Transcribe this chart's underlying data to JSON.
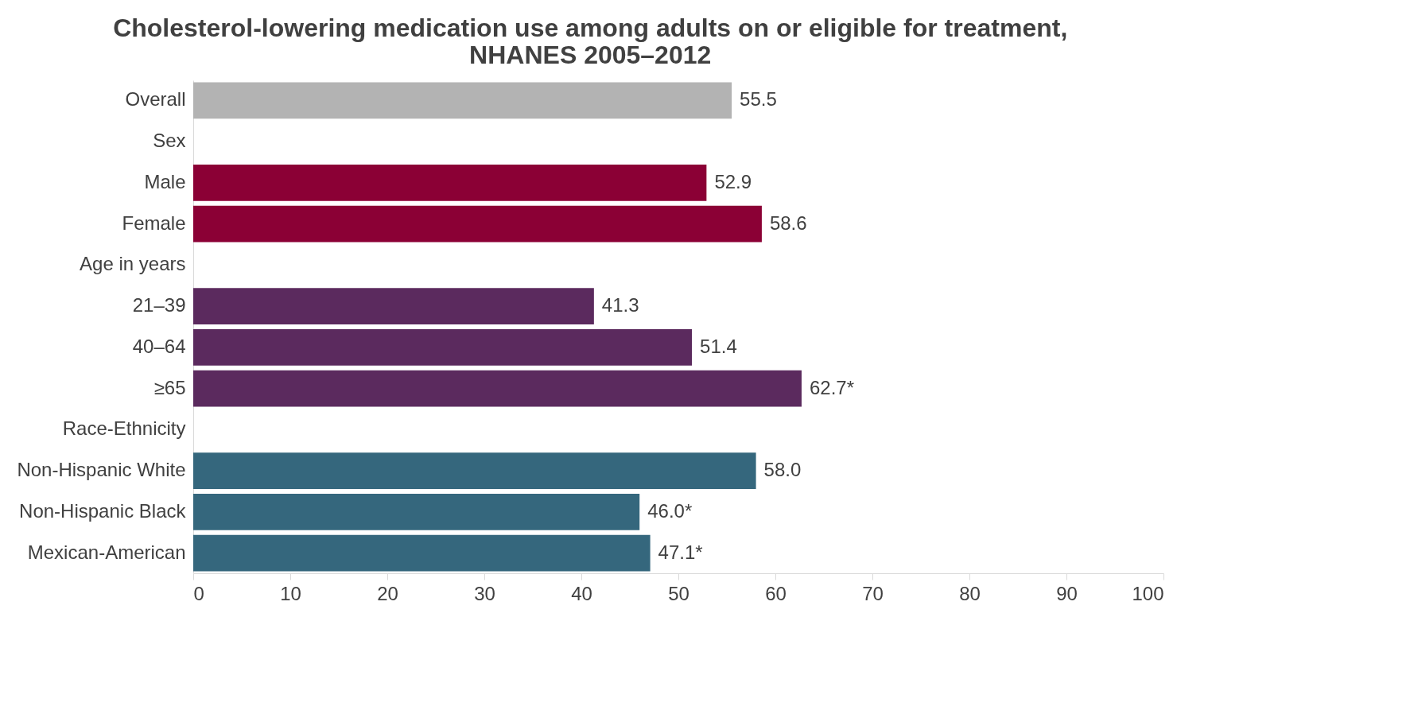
{
  "chart_data": {
    "type": "bar",
    "orientation": "horizontal",
    "title": "Cholesterol-lowering medication use among adults on or eligible for treatment, NHANES 2005–2012",
    "categories": [
      "Overall",
      "Sex",
      "Male",
      "Female",
      "Age in years",
      "21–39",
      "40–64",
      "≥65",
      "Race-Ethnicity",
      "Non-Hispanic White",
      "Non-Hispanic Black",
      "Mexican-American"
    ],
    "values": [
      55.5,
      null,
      52.9,
      58.6,
      null,
      41.3,
      51.4,
      62.7,
      null,
      58.0,
      46.0,
      47.1
    ],
    "colors": [
      "#b3b3b3",
      null,
      "#8b0035",
      "#8b0035",
      null,
      "#5b2a5e",
      "#5b2a5e",
      "#5b2a5e",
      null,
      "#35677d",
      "#35677d",
      "#35677d"
    ],
    "value_labels": [
      "55.5",
      null,
      "52.9",
      "58.6",
      null,
      "41.3",
      "51.4",
      "62.7*",
      null,
      "58.0",
      "46.0*",
      "47.1*"
    ],
    "xlim": [
      0,
      100
    ],
    "xticks": [
      0,
      10,
      20,
      30,
      40,
      50,
      60,
      70,
      80,
      90,
      100
    ],
    "grid": false
  }
}
